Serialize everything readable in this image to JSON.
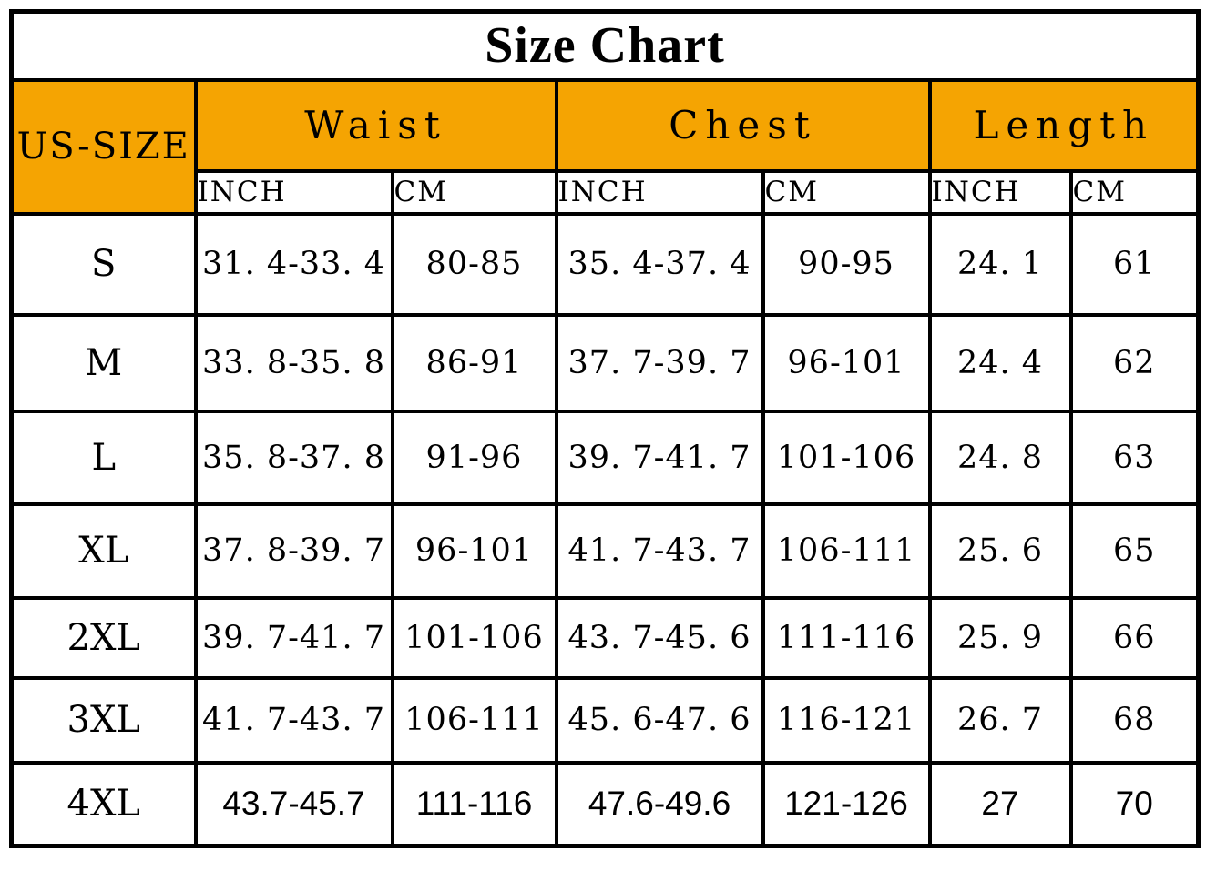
{
  "title": "Size Chart",
  "colors": {
    "header_bg": "#F5A402",
    "border": "#000000",
    "background": "#FFFFFF",
    "text": "#000000"
  },
  "table": {
    "size_column_header": "US-SIZE",
    "groups": [
      {
        "label": "Waist"
      },
      {
        "label": "Chest"
      },
      {
        "label": "Length"
      }
    ],
    "unit_headers": [
      "INCH",
      "CM"
    ],
    "rows": [
      {
        "size": "S",
        "waist_inch": "31. 4-33. 4",
        "waist_cm": "80-85",
        "chest_inch": "35. 4-37. 4",
        "chest_cm": "90-95",
        "length_inch": "24. 1",
        "length_cm": "61"
      },
      {
        "size": "M",
        "waist_inch": "33. 8-35. 8",
        "waist_cm": "86-91",
        "chest_inch": "37. 7-39. 7",
        "chest_cm": "96-101",
        "length_inch": "24. 4",
        "length_cm": "62"
      },
      {
        "size": "L",
        "waist_inch": "35. 8-37. 8",
        "waist_cm": "91-96",
        "chest_inch": "39. 7-41. 7",
        "chest_cm": "101-106",
        "length_inch": "24. 8",
        "length_cm": "63"
      },
      {
        "size": "XL",
        "waist_inch": "37. 8-39. 7",
        "waist_cm": "96-101",
        "chest_inch": "41. 7-43. 7",
        "chest_cm": "106-111",
        "length_inch": "25. 6",
        "length_cm": "65"
      },
      {
        "size": "2XL",
        "waist_inch": "39. 7-41. 7",
        "waist_cm": "101-106",
        "chest_inch": "43. 7-45. 6",
        "chest_cm": "111-116",
        "length_inch": "25. 9",
        "length_cm": "66"
      },
      {
        "size": "3XL",
        "waist_inch": "41. 7-43. 7",
        "waist_cm": "106-111",
        "chest_inch": "45. 6-47. 6",
        "chest_cm": "116-121",
        "length_inch": "26. 7",
        "length_cm": "68"
      },
      {
        "size": "4XL",
        "waist_inch": "43.7-45.7",
        "waist_cm": "111-116",
        "chest_inch": "47.6-49.6",
        "chest_cm": "121-126",
        "length_inch": "27",
        "length_cm": "70"
      }
    ]
  },
  "chart_data": {
    "type": "table",
    "title": "Size Chart",
    "columns": [
      "US-SIZE",
      "Waist INCH",
      "Waist CM",
      "Chest INCH",
      "Chest CM",
      "Length INCH",
      "Length CM"
    ],
    "rows": [
      [
        "S",
        "31.4-33.4",
        "80-85",
        "35.4-37.4",
        "90-95",
        "24.1",
        "61"
      ],
      [
        "M",
        "33.8-35.8",
        "86-91",
        "37.7-39.7",
        "96-101",
        "24.4",
        "62"
      ],
      [
        "L",
        "35.8-37.8",
        "91-96",
        "39.7-41.7",
        "101-106",
        "24.8",
        "63"
      ],
      [
        "XL",
        "37.8-39.7",
        "96-101",
        "41.7-43.7",
        "106-111",
        "25.6",
        "65"
      ],
      [
        "2XL",
        "39.7-41.7",
        "101-106",
        "43.7-45.6",
        "111-116",
        "25.9",
        "66"
      ],
      [
        "3XL",
        "41.7-43.7",
        "106-111",
        "45.6-47.6",
        "116-121",
        "26.7",
        "68"
      ],
      [
        "4XL",
        "43.7-45.7",
        "111-116",
        "47.6-49.6",
        "121-126",
        "27",
        "70"
      ]
    ]
  }
}
